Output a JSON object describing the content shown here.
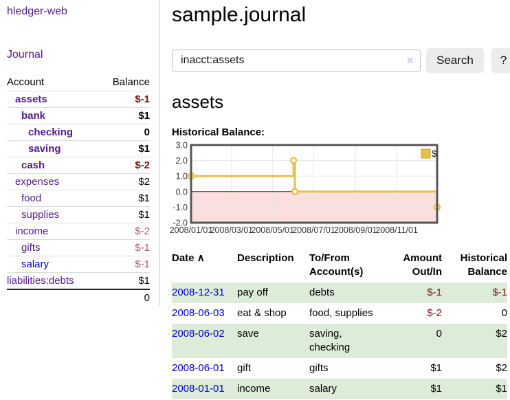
{
  "sidebar": {
    "app_title": "hledger-web",
    "journal_link": "Journal",
    "accounts_table": {
      "headers": {
        "account": "Account",
        "balance": "Balance"
      },
      "rows": [
        {
          "name": "assets",
          "balance": "$-1"
        },
        {
          "name": "bank",
          "balance": "$1"
        },
        {
          "name": "checking",
          "balance": "0"
        },
        {
          "name": "saving",
          "balance": "$1"
        },
        {
          "name": "cash",
          "balance": "$-2"
        },
        {
          "name": "expenses",
          "balance": "$2"
        },
        {
          "name": "food",
          "balance": "$1"
        },
        {
          "name": "supplies",
          "balance": "$1"
        },
        {
          "name": "income",
          "balance": "$-2"
        },
        {
          "name": "gifts",
          "balance": "$-1"
        },
        {
          "name": "salary",
          "balance": "$-1"
        },
        {
          "name": "liabilities:debts",
          "balance": "$1"
        }
      ],
      "total": "0"
    }
  },
  "header": {
    "title": "sample.journal"
  },
  "search": {
    "value": "inacct:assets",
    "clear_icon": "×",
    "button_label": "Search",
    "help_label": "?"
  },
  "main": {
    "account_heading": "assets",
    "chart_label": "Historical Balance:"
  },
  "chart_data": {
    "type": "line",
    "title": "Historical Balance",
    "step": true,
    "series": [
      {
        "name": "$",
        "color": "#e6c24a",
        "points": [
          {
            "x": "2008-01-01",
            "y": 1
          },
          {
            "x": "2008-06-01",
            "y": 2
          },
          {
            "x": "2008-06-03",
            "y": 0
          },
          {
            "x": "2008-12-31",
            "y": -1
          }
        ]
      }
    ],
    "xlim": [
      "2008-01-01",
      "2008-12-31"
    ],
    "ylim": [
      -2,
      3
    ],
    "y_ticks": [
      3,
      2,
      1,
      0,
      -1,
      -2
    ],
    "x_ticks": [
      "2008/01/01",
      "2008/03/01",
      "2008/05/01",
      "2008/07/01",
      "2008/09/01",
      "2008/11/01"
    ],
    "legend": {
      "position": "top-right",
      "label": "$"
    },
    "grid": true,
    "negative_region_fill": "#fbdfdf",
    "zero_line_color": "#8b0000",
    "border_color": "#545454",
    "grid_color": "#e8e8e8"
  },
  "transactions": {
    "columns": {
      "date": "Date",
      "description": "Description",
      "accounts": "To/From Account(s)",
      "amount": "Amount Out/In",
      "balance": "Historical Balance"
    },
    "sort_icon": "∧",
    "rows": [
      {
        "date": "2008-12-31",
        "description": "pay off",
        "accounts": "debts",
        "amount": "$-1",
        "balance": "$-1"
      },
      {
        "date": "2008-06-03",
        "description": "eat & shop",
        "accounts": "food, supplies",
        "amount": "$-2",
        "balance": "0"
      },
      {
        "date": "2008-06-02",
        "description": "save",
        "accounts": "saving,\nchecking",
        "amount": "0",
        "balance": "$2"
      },
      {
        "date": "2008-06-01",
        "description": "gift",
        "accounts": "gifts",
        "amount": "$1",
        "balance": "$2"
      },
      {
        "date": "2008-01-01",
        "description": "income",
        "accounts": "salary",
        "amount": "$1",
        "balance": "$1"
      }
    ]
  },
  "colors": {
    "link_purple": "#551a8b",
    "link_blue": "#0000d0",
    "negative_strong": "#7c0f0f",
    "negative_soft": "#b05c5c",
    "row_stripe_green": "#dcecd8",
    "button_bg": "#ececec",
    "chart_line_gold": "#e6c24a"
  }
}
